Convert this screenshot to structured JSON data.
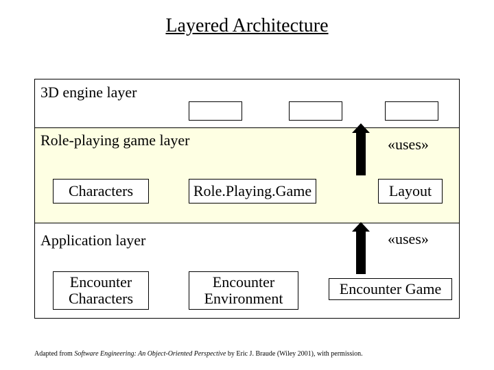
{
  "title": "Layered Architecture",
  "layers": {
    "engine": {
      "label": "3D engine layer"
    },
    "rpg": {
      "label": "Role-playing game layer",
      "uses_label": "«uses»",
      "characters": "Characters",
      "game": "Role.Playing.Game",
      "layout": "Layout",
      "band_bg": "#feffe3"
    },
    "app": {
      "label": "Application layer",
      "uses_label": "«uses»",
      "enc_char_l1": "Encounter",
      "enc_char_l2": "Characters",
      "enc_env_l1": "Encounter",
      "enc_env_l2": "Environment",
      "enc_game": "Encounter Game"
    }
  },
  "footer": {
    "prefix": "Adapted from ",
    "italic": "Software Engineering: An Object-Oriented Perspective",
    "suffix": " by Eric J. Braude (Wiley 2001), with permission."
  },
  "style": {
    "background": "#ffffff",
    "border_color": "#000000",
    "title_fontsize": 28,
    "label_fontsize": 22,
    "footer_fontsize": 10,
    "empty_box_count": 3
  }
}
